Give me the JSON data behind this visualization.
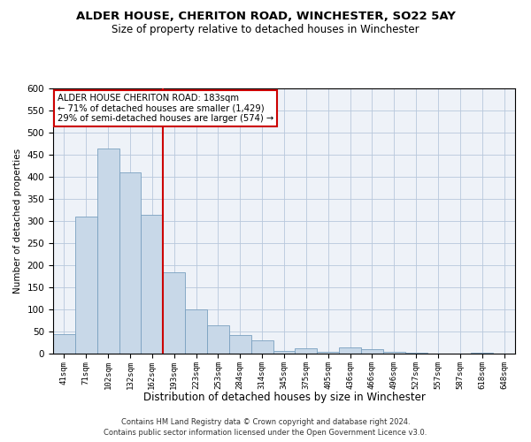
{
  "title": "ALDER HOUSE, CHERITON ROAD, WINCHESTER, SO22 5AY",
  "subtitle": "Size of property relative to detached houses in Winchester",
  "xlabel": "Distribution of detached houses by size in Winchester",
  "ylabel": "Number of detached properties",
  "footer_line1": "Contains HM Land Registry data © Crown copyright and database right 2024.",
  "footer_line2": "Contains public sector information licensed under the Open Government Licence v3.0.",
  "bar_color": "#c8d8e8",
  "bar_edge_color": "#7aa0c0",
  "vline_color": "#cc0000",
  "vline_x_index": 5,
  "annotation_text": "ALDER HOUSE CHERITON ROAD: 183sqm\n← 71% of detached houses are smaller (1,429)\n29% of semi-detached houses are larger (574) →",
  "annotation_box_color": "#cc0000",
  "categories": [
    "41sqm",
    "71sqm",
    "102sqm",
    "132sqm",
    "162sqm",
    "193sqm",
    "223sqm",
    "253sqm",
    "284sqm",
    "314sqm",
    "345sqm",
    "375sqm",
    "405sqm",
    "436sqm",
    "466sqm",
    "496sqm",
    "527sqm",
    "557sqm",
    "587sqm",
    "618sqm",
    "648sqm"
  ],
  "bar_heights": [
    45,
    310,
    465,
    410,
    315,
    185,
    100,
    65,
    42,
    30,
    7,
    13,
    5,
    15,
    10,
    5,
    3,
    0,
    0,
    2,
    0
  ],
  "ylim": [
    0,
    600
  ],
  "yticks": [
    0,
    50,
    100,
    150,
    200,
    250,
    300,
    350,
    400,
    450,
    500,
    550,
    600
  ],
  "background_color": "#eef2f8",
  "grid_color": "#b8c8dc"
}
